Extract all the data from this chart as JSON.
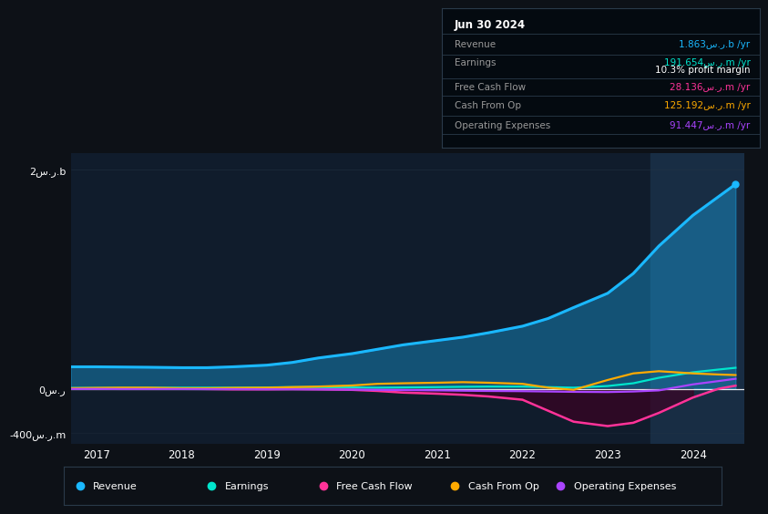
{
  "background_color": "#0d1117",
  "plot_bg_color": "#101c2c",
  "grid_color": "#263545",
  "title_box": {
    "date": "Jun 30 2024",
    "rows": [
      {
        "label": "Revenue",
        "value": "1.863س.ر.b /yr",
        "color": "#1ab8ff"
      },
      {
        "label": "Earnings",
        "value": "191.654س.ر.m /yr",
        "color": "#00e5cc"
      },
      {
        "label": "",
        "value": "10.3% profit margin",
        "color": "#ffffff"
      },
      {
        "label": "Free Cash Flow",
        "value": "28.136س.ر.m /yr",
        "color": "#ff3399"
      },
      {
        "label": "Cash From Op",
        "value": "125.192س.ر.m /yr",
        "color": "#ffaa00"
      },
      {
        "label": "Operating Expenses",
        "value": "91.447س.ر.m /yr",
        "color": "#aa44ff"
      }
    ]
  },
  "x_years": [
    2016.7,
    2017.0,
    2017.3,
    2017.6,
    2018.0,
    2018.3,
    2018.6,
    2019.0,
    2019.3,
    2019.6,
    2020.0,
    2020.3,
    2020.6,
    2021.0,
    2021.3,
    2021.6,
    2022.0,
    2022.3,
    2022.6,
    2023.0,
    2023.3,
    2023.6,
    2024.0,
    2024.3,
    2024.5
  ],
  "revenue": [
    200,
    200,
    198,
    196,
    192,
    192,
    200,
    215,
    240,
    280,
    320,
    360,
    400,
    440,
    470,
    510,
    570,
    640,
    740,
    870,
    1050,
    1300,
    1580,
    1750,
    1863
  ],
  "earnings": [
    8,
    8,
    9,
    10,
    10,
    10,
    10,
    12,
    15,
    15,
    12,
    10,
    12,
    15,
    18,
    20,
    20,
    15,
    10,
    25,
    50,
    100,
    150,
    175,
    191
  ],
  "free_cash_flow": [
    0,
    2,
    2,
    1,
    0,
    -2,
    -5,
    -5,
    -3,
    -5,
    -10,
    -20,
    -35,
    -45,
    -55,
    -70,
    -100,
    -200,
    -300,
    -340,
    -310,
    -220,
    -80,
    0,
    28
  ],
  "cash_from_op": [
    5,
    8,
    10,
    10,
    5,
    5,
    8,
    10,
    15,
    20,
    30,
    45,
    50,
    55,
    60,
    55,
    45,
    10,
    -10,
    80,
    140,
    160,
    140,
    130,
    125
  ],
  "operating_expenses": [
    -2,
    -2,
    -3,
    -3,
    -3,
    -4,
    -4,
    -5,
    -5,
    -6,
    -8,
    -10,
    -12,
    -15,
    -18,
    -20,
    -22,
    -25,
    -28,
    -30,
    -25,
    -15,
    40,
    70,
    91
  ],
  "ytick_vals": [
    2000,
    0,
    -400
  ],
  "ytick_labels": [
    "2س.ر.b",
    "0س.ر",
    "-400س.ر.m"
  ],
  "xtick_labels": [
    "2017",
    "2018",
    "2019",
    "2020",
    "2021",
    "2022",
    "2023",
    "2024"
  ],
  "xtick_positions": [
    2017,
    2018,
    2019,
    2020,
    2021,
    2022,
    2023,
    2024
  ],
  "ylim": [
    -500,
    2150
  ],
  "xlim": [
    2016.7,
    2024.6
  ],
  "revenue_color": "#1ab8ff",
  "earnings_color": "#00e5cc",
  "fcf_color": "#ff3399",
  "cashop_color": "#ffaa00",
  "opex_color": "#aa44ff",
  "legend_items": [
    "Revenue",
    "Earnings",
    "Free Cash Flow",
    "Cash From Op",
    "Operating Expenses"
  ],
  "legend_colors": [
    "#1ab8ff",
    "#00e5cc",
    "#ff3399",
    "#ffaa00",
    "#aa44ff"
  ],
  "highlight_x_start": 2023.5,
  "highlight_color": "#182d44"
}
